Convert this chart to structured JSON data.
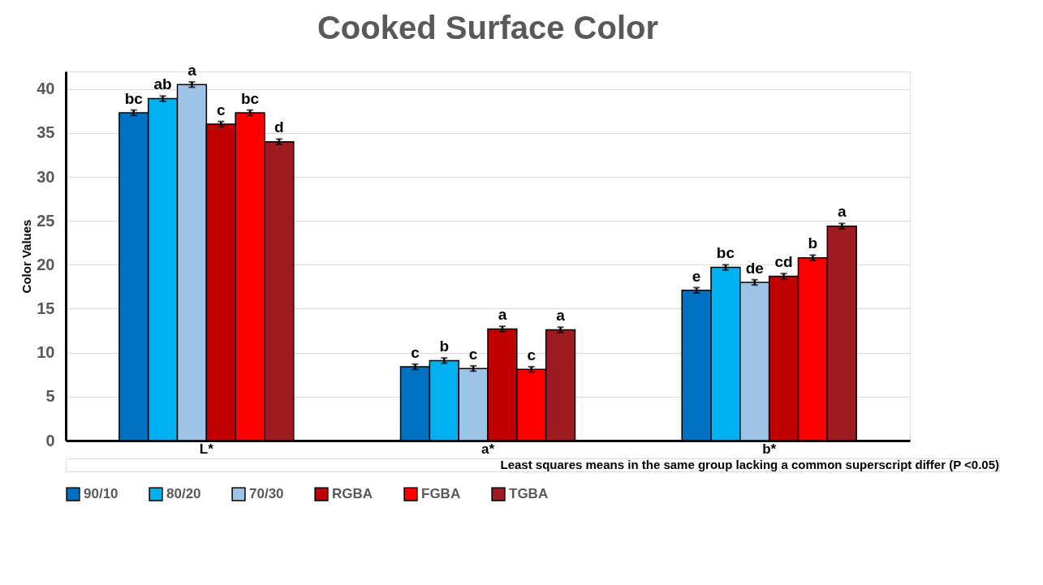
{
  "chart_data": {
    "type": "bar",
    "title": "Cooked Surface Color",
    "ylabel": "Color Values",
    "categories": [
      "L*",
      "a*",
      "b*"
    ],
    "series": [
      {
        "name": "90/10",
        "color": "#0070c0",
        "values": [
          37.3,
          8.4,
          17.1
        ],
        "errors": [
          0.3,
          0.3,
          0.3
        ],
        "value_labels": [
          "bc",
          "c",
          "e"
        ]
      },
      {
        "name": "80/20",
        "color": "#00b0f0",
        "values": [
          38.9,
          9.1,
          19.7
        ],
        "errors": [
          0.3,
          0.3,
          0.3
        ],
        "value_labels": [
          "ab",
          "b",
          "bc"
        ]
      },
      {
        "name": "70/30",
        "color": "#9dc3e6",
        "values": [
          40.5,
          8.2,
          18.0
        ],
        "errors": [
          0.3,
          0.3,
          0.3
        ],
        "value_labels": [
          "a",
          "c",
          "de"
        ]
      },
      {
        "name": "RGBA",
        "color": "#c00000",
        "values": [
          36.0,
          12.7,
          18.7
        ],
        "errors": [
          0.3,
          0.3,
          0.3
        ],
        "value_labels": [
          "c",
          "a",
          "cd"
        ]
      },
      {
        "name": "FGBA",
        "color": "#ff0000",
        "values": [
          37.3,
          8.1,
          20.8
        ],
        "errors": [
          0.3,
          0.3,
          0.3
        ],
        "value_labels": [
          "bc",
          "c",
          "b"
        ]
      },
      {
        "name": "TGBA",
        "color": "#9e1b22",
        "values": [
          34.0,
          12.6,
          24.4
        ],
        "errors": [
          0.3,
          0.3,
          0.3
        ],
        "value_labels": [
          "d",
          "a",
          "a"
        ]
      }
    ],
    "ylim": [
      0,
      42
    ],
    "yticks": [
      0,
      5,
      10,
      15,
      20,
      25,
      30,
      35,
      40
    ],
    "grid": "y",
    "legend": "bottom",
    "annotations": [
      "Least squares means in the same group lacking a common superscript differ (P <0.05)"
    ]
  }
}
